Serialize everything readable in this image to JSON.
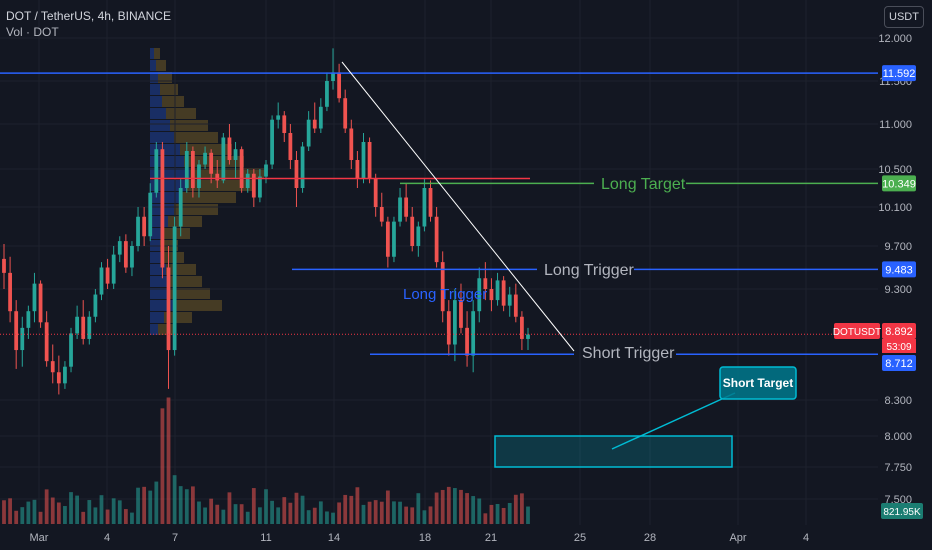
{
  "header": {
    "symbol_line": "DOT / TetherUS, 4h, BINANCE",
    "volume_line": "Vol · DOT"
  },
  "quote_currency_button": "USDT",
  "colors": {
    "background": "#131722",
    "up": "#26a69a",
    "down": "#ef5350",
    "blue_line": "#2962ff",
    "green_line": "#4caf50",
    "red_line": "#f23645",
    "label_gray": "#b2b5be",
    "short_target_box": "#00bcd4"
  },
  "chart_data": {
    "type": "candlestick",
    "symbol": "DOTUSDT",
    "interval": "4h",
    "x_ticks": [
      "Mar",
      "4",
      "7",
      "11",
      "14",
      "18",
      "21",
      "25",
      "28",
      "Apr",
      "4"
    ],
    "y_ticks": [
      "12.000",
      "11.500",
      "11.000",
      "10.500",
      "10.100",
      "9.700",
      "9.300",
      "8.300",
      "8.000",
      "7.750",
      "7.500"
    ],
    "ylim": [
      7.4,
      12.2
    ],
    "price_labels": [
      {
        "text": "11.592",
        "value": 11.592,
        "color": "#2962ff"
      },
      {
        "text": "10.349",
        "value": 10.349,
        "color": "#4caf50"
      },
      {
        "text": "9.483",
        "value": 9.483,
        "color": "#2962ff"
      },
      {
        "text": "8.892",
        "value": 8.892,
        "color": "#f23645"
      },
      {
        "text": "8.712",
        "value": 8.712,
        "color": "#2962ff"
      }
    ],
    "last_price": {
      "symbol": "DOTUSDT",
      "price": "8.892",
      "countdown": "53:09"
    },
    "volume_label": "821.95K",
    "annotations": {
      "long_target": {
        "text": "Long Target",
        "price": 10.349
      },
      "long_trigger": {
        "text": "Long Trigger",
        "price": 9.483
      },
      "long_trigger_inner": {
        "text": "Long Trigger"
      },
      "short_trigger": {
        "text": "Short Trigger",
        "price": 8.712
      },
      "short_target": {
        "text": "Short Target",
        "box_price_range": [
          7.75,
          8.0
        ]
      }
    },
    "horizontal_levels": [
      11.592,
      10.4,
      10.349,
      9.483,
      8.712
    ],
    "candles_estimated": [
      [
        9.58,
        9.72,
        9.3,
        9.45
      ],
      [
        9.45,
        9.6,
        9.0,
        9.1
      ],
      [
        9.1,
        9.2,
        8.58,
        8.75
      ],
      [
        8.75,
        9.05,
        8.6,
        8.95
      ],
      [
        8.95,
        9.15,
        8.85,
        9.1
      ],
      [
        9.1,
        9.45,
        9.0,
        9.35
      ],
      [
        9.35,
        9.38,
        8.95,
        9.0
      ],
      [
        9.0,
        9.1,
        8.6,
        8.65
      ],
      [
        8.65,
        8.8,
        8.45,
        8.55
      ],
      [
        8.55,
        8.7,
        8.35,
        8.45
      ],
      [
        8.45,
        8.65,
        8.4,
        8.6
      ],
      [
        8.6,
        8.95,
        8.55,
        8.9
      ],
      [
        8.9,
        9.15,
        8.85,
        9.05
      ],
      [
        9.05,
        9.2,
        8.8,
        8.85
      ],
      [
        8.85,
        9.1,
        8.8,
        9.05
      ],
      [
        9.05,
        9.3,
        9.0,
        9.25
      ],
      [
        9.25,
        9.55,
        9.2,
        9.5
      ],
      [
        9.5,
        9.58,
        9.3,
        9.35
      ],
      [
        9.35,
        9.7,
        9.3,
        9.62
      ],
      [
        9.62,
        9.8,
        9.55,
        9.75
      ],
      [
        9.75,
        9.82,
        9.45,
        9.5
      ],
      [
        9.5,
        9.75,
        9.42,
        9.7
      ],
      [
        9.7,
        10.1,
        9.65,
        10.0
      ],
      [
        10.0,
        10.1,
        9.7,
        9.8
      ],
      [
        9.8,
        10.35,
        9.75,
        10.25
      ],
      [
        10.25,
        10.8,
        10.2,
        10.72
      ],
      [
        10.72,
        10.8,
        9.4,
        9.5
      ],
      [
        9.5,
        9.7,
        8.4,
        8.75
      ],
      [
        8.75,
        10.0,
        8.7,
        9.9
      ],
      [
        9.9,
        10.4,
        9.8,
        10.3
      ],
      [
        10.3,
        10.8,
        10.25,
        10.7
      ],
      [
        10.7,
        10.75,
        10.2,
        10.3
      ],
      [
        10.3,
        10.6,
        10.2,
        10.55
      ],
      [
        10.55,
        10.75,
        10.5,
        10.68
      ],
      [
        10.68,
        10.72,
        10.35,
        10.45
      ],
      [
        10.45,
        10.6,
        10.3,
        10.38
      ],
      [
        10.38,
        10.9,
        10.35,
        10.85
      ],
      [
        10.85,
        11.0,
        10.55,
        10.6
      ],
      [
        10.6,
        10.8,
        10.4,
        10.72
      ],
      [
        10.72,
        10.75,
        10.25,
        10.3
      ],
      [
        10.3,
        10.5,
        10.25,
        10.45
      ],
      [
        10.45,
        10.5,
        10.1,
        10.2
      ],
      [
        10.2,
        10.5,
        10.15,
        10.42
      ],
      [
        10.42,
        10.6,
        10.35,
        10.55
      ],
      [
        10.55,
        11.1,
        10.5,
        11.05
      ],
      [
        11.05,
        11.25,
        10.95,
        11.1
      ],
      [
        11.1,
        11.15,
        10.8,
        10.9
      ],
      [
        10.9,
        11.0,
        10.5,
        10.6
      ],
      [
        10.6,
        10.7,
        10.1,
        10.3
      ],
      [
        10.3,
        10.8,
        10.25,
        10.75
      ],
      [
        10.75,
        11.15,
        10.7,
        11.05
      ],
      [
        11.05,
        11.25,
        10.9,
        10.95
      ],
      [
        10.95,
        11.3,
        10.9,
        11.2
      ],
      [
        11.2,
        11.6,
        11.15,
        11.5
      ],
      [
        11.5,
        11.88,
        11.4,
        11.6
      ],
      [
        11.6,
        11.7,
        11.25,
        11.3
      ],
      [
        11.3,
        11.4,
        10.9,
        10.95
      ],
      [
        10.95,
        11.05,
        10.5,
        10.6
      ],
      [
        10.6,
        10.7,
        10.3,
        10.4
      ],
      [
        10.4,
        10.9,
        10.35,
        10.8
      ],
      [
        10.8,
        10.85,
        10.35,
        10.4
      ],
      [
        10.4,
        10.45,
        10.0,
        10.1
      ],
      [
        10.1,
        10.25,
        9.9,
        9.95
      ],
      [
        9.95,
        10.0,
        9.5,
        9.6
      ],
      [
        9.6,
        10.0,
        9.55,
        9.95
      ],
      [
        9.95,
        10.3,
        9.9,
        10.2
      ],
      [
        10.2,
        10.35,
        9.95,
        10.0
      ],
      [
        10.0,
        10.1,
        9.65,
        9.7
      ],
      [
        9.7,
        9.95,
        9.6,
        9.9
      ],
      [
        9.9,
        10.4,
        9.85,
        10.3
      ],
      [
        10.3,
        10.38,
        9.95,
        10.0
      ],
      [
        10.0,
        10.1,
        9.5,
        9.55
      ],
      [
        9.55,
        9.65,
        9.0,
        9.1
      ],
      [
        9.1,
        9.2,
        8.7,
        8.8
      ],
      [
        8.8,
        9.3,
        8.65,
        9.2
      ],
      [
        9.2,
        9.35,
        8.9,
        8.95
      ],
      [
        8.95,
        9.1,
        8.6,
        8.7
      ],
      [
        8.7,
        9.2,
        8.55,
        9.1
      ],
      [
        9.1,
        9.5,
        9.0,
        9.4
      ],
      [
        9.4,
        9.55,
        9.2,
        9.3
      ],
      [
        9.3,
        9.4,
        9.1,
        9.2
      ],
      [
        9.2,
        9.45,
        9.15,
        9.38
      ],
      [
        9.38,
        9.42,
        9.1,
        9.15
      ],
      [
        9.15,
        9.32,
        9.05,
        9.25
      ],
      [
        9.25,
        9.35,
        9.0,
        9.05
      ],
      [
        9.05,
        9.1,
        8.75,
        8.85
      ],
      [
        8.85,
        8.95,
        8.75,
        8.89
      ]
    ]
  }
}
